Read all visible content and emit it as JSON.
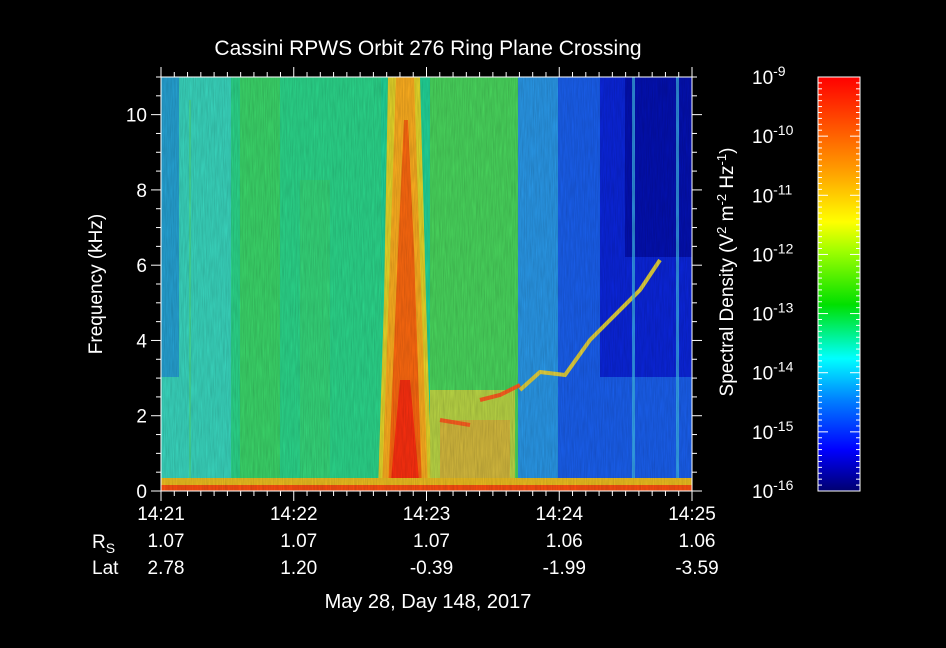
{
  "chart_data": {
    "type": "heatmap",
    "title": "Cassini RPWS Orbit 276 Ring Plane Crossing",
    "ylabel": "Frequency (kHz)",
    "xlabel": "May 28, Day 148, 2017",
    "ylim": [
      0,
      11
    ],
    "y_ticks": [
      0,
      2,
      4,
      6,
      8,
      10
    ],
    "x_ticks": [
      {
        "label": "14:21",
        "rs": "1.07",
        "lat": "2.78"
      },
      {
        "label": "14:22",
        "rs": "1.07",
        "lat": "1.20"
      },
      {
        "label": "14:23",
        "rs": "1.07",
        "lat": "-0.39"
      },
      {
        "label": "14:24",
        "rs": "1.06",
        "lat": "-1.99"
      },
      {
        "label": "14:25",
        "rs": "1.06",
        "lat": "-3.59"
      }
    ],
    "row_labels": {
      "rs_main": "R",
      "rs_sub": "S",
      "lat": "Lat"
    },
    "colorbar": {
      "label_main": "Spectral Density (V",
      "label_sup1": "2",
      "label_mid": " m",
      "label_sup2": "-2",
      "label_mid2": " Hz",
      "label_sup3": "-1",
      "label_end": ")",
      "range_exponents": [
        -16,
        -9
      ],
      "ticks": [
        {
          "base": "10",
          "exp": "-9"
        },
        {
          "base": "10",
          "exp": "-10"
        },
        {
          "base": "10",
          "exp": "-11"
        },
        {
          "base": "10",
          "exp": "-12"
        },
        {
          "base": "10",
          "exp": "-13"
        },
        {
          "base": "10",
          "exp": "-14"
        },
        {
          "base": "10",
          "exp": "-15"
        },
        {
          "base": "10",
          "exp": "-16"
        }
      ],
      "colors": [
        "#000080",
        "#0000ff",
        "#00ffff",
        "#00e000",
        "#ffff00",
        "#ff8000",
        "#ff0000"
      ]
    }
  }
}
